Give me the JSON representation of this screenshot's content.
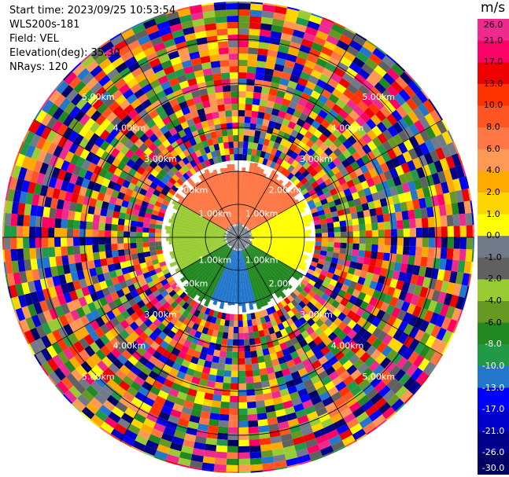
{
  "header": {
    "start_time": "Start time: 2023/09/25 10:53:54",
    "instrument": "WLS200s-181",
    "field": "Field: VEL",
    "elevation": "Elevation(deg): 35.30",
    "nrays": "NRays: 120"
  },
  "colorbar": {
    "unit": "m/s",
    "ticks": [
      "26.0",
      "21.0",
      "17.0",
      "13.0",
      "10.0",
      "8.0",
      "6.0",
      "4.0",
      "2.0",
      "1.0",
      "0.0",
      "-1.0",
      "-2.0",
      "-4.0",
      "-6.0",
      "-8.0",
      "-10.0",
      "-13.0",
      "-17.0",
      "-21.0",
      "-26.0",
      "-30.0"
    ],
    "colors": [
      "#ee2a8e",
      "#ff0066",
      "#ee0000",
      "#ff3300",
      "#ff5522",
      "#ff7744",
      "#ff9955",
      "#ffaa00",
      "#ffd500",
      "#ffff00",
      "#707a88",
      "#606060",
      "#99cc33",
      "#669922",
      "#228822",
      "#229944",
      "#2277cc",
      "#0000ff",
      "#0000cc",
      "#000088",
      "#000066"
    ]
  },
  "range_rings": {
    "labels": [
      "1.00km",
      "2.00km",
      "3.00km",
      "4.00km",
      "5.00km"
    ]
  },
  "chart_data": {
    "type": "heatmap",
    "projection": "polar PPI",
    "field": "VEL",
    "units": "m/s",
    "n_rays": 120,
    "range_rings_km": [
      1,
      2,
      3,
      4,
      5
    ],
    "velocity_min": -30.0,
    "velocity_max": 26.0,
    "valid_range_km": 2.0,
    "beyond_valid_range": "noise (random values across full scale)",
    "sectors": [
      {
        "azimuth_deg": [
          300,
          60
        ],
        "velocity_m_s": 8.0,
        "color": "#ff7744"
      },
      {
        "azimuth_deg": [
          60,
          120
        ],
        "velocity_m_s": 2.0,
        "color": "#ffff00"
      },
      {
        "azimuth_deg": [
          120,
          165
        ],
        "velocity_m_s": -6.0,
        "color": "#228822"
      },
      {
        "azimuth_deg": [
          165,
          205
        ],
        "velocity_m_s": -10.0,
        "color": "#2277cc"
      },
      {
        "azimuth_deg": [
          205,
          240
        ],
        "velocity_m_s": -6.0,
        "color": "#228822"
      },
      {
        "azimuth_deg": [
          240,
          300
        ],
        "velocity_m_s": -2.0,
        "color": "#99cc33"
      }
    ],
    "near_origin": {
      "radius_km": 0.4,
      "velocity_m_s": 0.0,
      "color": "#707a88"
    }
  }
}
